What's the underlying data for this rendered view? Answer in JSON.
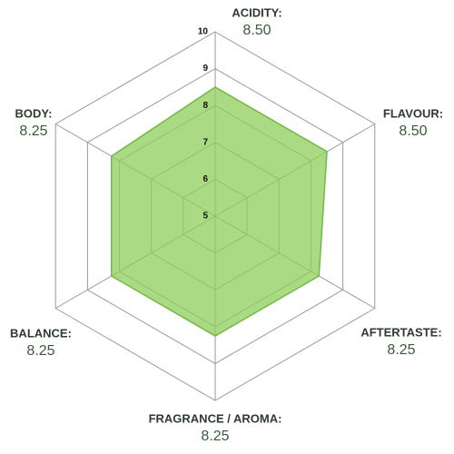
{
  "chart_data": {
    "type": "radar",
    "categories": [
      "ACIDITY:",
      "FLAVOUR:",
      "AFTERTASTE:",
      "FRAGRANCE / AROMA:",
      "BALANCE:",
      "BODY:"
    ],
    "values": [
      8.5,
      8.5,
      8.25,
      8.25,
      8.25,
      8.25
    ],
    "value_labels": [
      "8.50",
      "8.50",
      "8.25",
      "8.25",
      "8.25",
      "8.25"
    ],
    "color": "#8fce5c",
    "rlim": [
      5,
      10
    ],
    "rticks": [
      5,
      6,
      7,
      8,
      9,
      10
    ],
    "grid": true
  }
}
